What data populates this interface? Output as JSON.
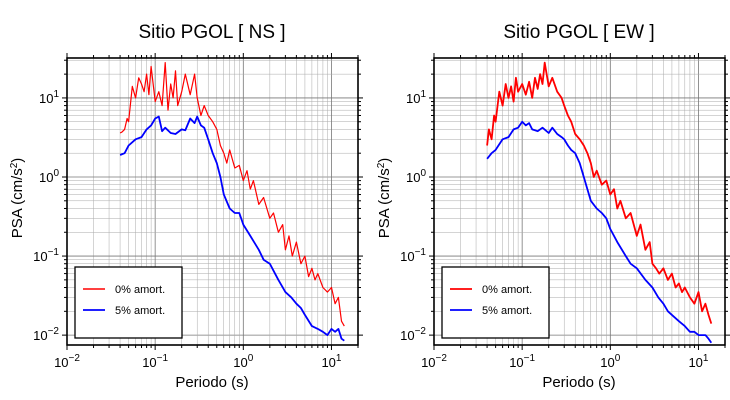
{
  "chart_data": [
    {
      "type": "line",
      "title": "Sitio PGOL [ NS ]",
      "xlabel": "Periodo (s)",
      "ylabel": "PSA (cm/s²)",
      "ylabel_main": "PSA (cm/s",
      "ylabel_sup": "2",
      "ylabel_close": ")",
      "xscale": "log",
      "yscale": "log",
      "xlim": [
        0.01,
        20
      ],
      "ylim": [
        0.0075,
        32
      ],
      "grid": true,
      "legend": "bottom-left",
      "xticks": [
        {
          "value": 0.01,
          "base": "10",
          "exp": "−2"
        },
        {
          "value": 0.1,
          "base": "10",
          "exp": "−1"
        },
        {
          "value": 1,
          "base": "10",
          "exp": "0"
        },
        {
          "value": 10,
          "base": "10",
          "exp": "1"
        }
      ],
      "yticks": [
        {
          "value": 0.01,
          "base": "10",
          "exp": "−2"
        },
        {
          "value": 0.1,
          "base": "10",
          "exp": "−1"
        },
        {
          "value": 1,
          "base": "10",
          "exp": "0"
        },
        {
          "value": 10,
          "base": "10",
          "exp": "1"
        }
      ],
      "series": [
        {
          "name": "0% amort.",
          "color": "#ff0000",
          "width": 1.2,
          "x": [
            0.04,
            0.042,
            0.045,
            0.048,
            0.05,
            0.055,
            0.06,
            0.065,
            0.07,
            0.075,
            0.08,
            0.085,
            0.09,
            0.1,
            0.11,
            0.12,
            0.13,
            0.14,
            0.15,
            0.16,
            0.17,
            0.18,
            0.2,
            0.22,
            0.25,
            0.28,
            0.3,
            0.33,
            0.36,
            0.4,
            0.45,
            0.5,
            0.55,
            0.6,
            0.65,
            0.7,
            0.8,
            0.9,
            1.0,
            1.1,
            1.2,
            1.3,
            1.5,
            1.7,
            2.0,
            2.2,
            2.5,
            2.8,
            3.0,
            3.3,
            3.6,
            4.0,
            4.5,
            5.0,
            5.5,
            6.0,
            6.5,
            7.0,
            8.0,
            9.0,
            10.0,
            11.0,
            12.0,
            13.0,
            14.0
          ],
          "y": [
            3.6,
            3.7,
            4.0,
            5.5,
            5.0,
            14.0,
            10.0,
            18.0,
            15.0,
            12.0,
            20.0,
            11.0,
            25.0,
            9.0,
            12.0,
            8.0,
            28.0,
            7.0,
            15.0,
            10.0,
            22.0,
            8.0,
            12.0,
            20.0,
            11.0,
            20.0,
            10.0,
            6.0,
            8.0,
            6.0,
            5.0,
            4.0,
            2.5,
            2.0,
            1.5,
            2.2,
            1.3,
            1.4,
            0.9,
            1.2,
            0.7,
            0.9,
            0.45,
            0.55,
            0.3,
            0.35,
            0.2,
            0.25,
            0.12,
            0.18,
            0.1,
            0.15,
            0.08,
            0.1,
            0.055,
            0.07,
            0.05,
            0.06,
            0.04,
            0.035,
            0.04,
            0.025,
            0.03,
            0.015,
            0.013
          ]
        },
        {
          "name": "5% amort.",
          "color": "#0000ff",
          "width": 1.8,
          "x": [
            0.04,
            0.045,
            0.05,
            0.06,
            0.07,
            0.08,
            0.09,
            0.1,
            0.11,
            0.12,
            0.13,
            0.15,
            0.17,
            0.2,
            0.22,
            0.25,
            0.28,
            0.3,
            0.33,
            0.36,
            0.4,
            0.45,
            0.5,
            0.55,
            0.6,
            0.7,
            0.8,
            0.9,
            1.0,
            1.2,
            1.5,
            1.7,
            2.0,
            2.5,
            3.0,
            3.5,
            4.0,
            4.5,
            5.0,
            6.0,
            7.0,
            8.0,
            9.0,
            10.0,
            11.0,
            12.0,
            13.0,
            14.0
          ],
          "y": [
            1.9,
            2.0,
            2.5,
            3.0,
            3.2,
            4.0,
            4.5,
            5.5,
            5.8,
            3.8,
            4.2,
            3.6,
            3.5,
            4.0,
            3.9,
            5.5,
            4.8,
            5.8,
            4.5,
            4.2,
            3.0,
            2.0,
            1.5,
            1.0,
            0.6,
            0.4,
            0.35,
            0.35,
            0.25,
            0.18,
            0.12,
            0.09,
            0.08,
            0.05,
            0.035,
            0.03,
            0.025,
            0.022,
            0.018,
            0.013,
            0.012,
            0.011,
            0.01,
            0.012,
            0.011,
            0.012,
            0.009,
            0.0085
          ]
        }
      ]
    },
    {
      "type": "line",
      "title": "Sitio PGOL [ EW ]",
      "xlabel": "Periodo (s)",
      "ylabel": "PSA (cm/s²)",
      "ylabel_main": "PSA (cm/s",
      "ylabel_sup": "2",
      "ylabel_close": ")",
      "xscale": "log",
      "yscale": "log",
      "xlim": [
        0.01,
        20
      ],
      "ylim": [
        0.0075,
        32
      ],
      "grid": true,
      "legend": "bottom-left",
      "xticks": [
        {
          "value": 0.01,
          "base": "10",
          "exp": "−2"
        },
        {
          "value": 0.1,
          "base": "10",
          "exp": "−1"
        },
        {
          "value": 1,
          "base": "10",
          "exp": "0"
        },
        {
          "value": 10,
          "base": "10",
          "exp": "1"
        }
      ],
      "yticks": [
        {
          "value": 0.01,
          "base": "10",
          "exp": "−2"
        },
        {
          "value": 0.1,
          "base": "10",
          "exp": "−1"
        },
        {
          "value": 1,
          "base": "10",
          "exp": "0"
        },
        {
          "value": 10,
          "base": "10",
          "exp": "1"
        }
      ],
      "series": [
        {
          "name": "0% amort.",
          "color": "#ff0000",
          "width": 1.8,
          "x": [
            0.04,
            0.042,
            0.045,
            0.048,
            0.05,
            0.055,
            0.06,
            0.065,
            0.07,
            0.075,
            0.08,
            0.085,
            0.09,
            0.1,
            0.11,
            0.12,
            0.13,
            0.14,
            0.15,
            0.16,
            0.17,
            0.18,
            0.2,
            0.22,
            0.25,
            0.28,
            0.3,
            0.33,
            0.36,
            0.4,
            0.45,
            0.5,
            0.55,
            0.6,
            0.65,
            0.7,
            0.8,
            0.9,
            1.0,
            1.1,
            1.2,
            1.3,
            1.5,
            1.7,
            2.0,
            2.2,
            2.5,
            2.8,
            3.0,
            3.3,
            3.6,
            4.0,
            4.5,
            5.0,
            5.5,
            6.0,
            6.5,
            7.0,
            8.0,
            9.0,
            10.0,
            11.0,
            12.0,
            13.0,
            14.0
          ],
          "y": [
            2.5,
            4.0,
            3.0,
            6.0,
            5.0,
            12.0,
            8.0,
            15.0,
            10.0,
            14.0,
            9.0,
            18.0,
            12.0,
            15.0,
            11.0,
            16.0,
            10.0,
            18.0,
            13.0,
            20.0,
            15.0,
            28.0,
            14.0,
            18.0,
            12.0,
            10.0,
            8.0,
            6.0,
            5.0,
            3.5,
            3.0,
            2.5,
            2.0,
            1.5,
            1.0,
            1.2,
            0.8,
            0.9,
            0.6,
            0.7,
            0.4,
            0.5,
            0.3,
            0.35,
            0.18,
            0.25,
            0.12,
            0.15,
            0.08,
            0.07,
            0.06,
            0.07,
            0.05,
            0.06,
            0.04,
            0.045,
            0.035,
            0.04,
            0.03,
            0.025,
            0.035,
            0.02,
            0.025,
            0.018,
            0.014
          ]
        },
        {
          "name": "5% amort.",
          "color": "#0000ff",
          "width": 1.8,
          "x": [
            0.04,
            0.045,
            0.05,
            0.06,
            0.07,
            0.08,
            0.09,
            0.1,
            0.11,
            0.12,
            0.13,
            0.15,
            0.17,
            0.2,
            0.22,
            0.25,
            0.28,
            0.3,
            0.33,
            0.36,
            0.4,
            0.45,
            0.5,
            0.55,
            0.6,
            0.7,
            0.8,
            0.9,
            1.0,
            1.2,
            1.5,
            1.7,
            2.0,
            2.5,
            3.0,
            3.5,
            4.0,
            4.5,
            5.0,
            6.0,
            7.0,
            8.0,
            9.0,
            10.0,
            11.0,
            12.0,
            13.0,
            14.0
          ],
          "y": [
            1.7,
            2.0,
            2.2,
            3.0,
            3.2,
            4.0,
            4.2,
            5.0,
            4.5,
            4.8,
            4.0,
            3.8,
            4.2,
            3.6,
            4.2,
            3.5,
            3.2,
            3.0,
            2.5,
            2.2,
            2.0,
            1.5,
            1.0,
            0.7,
            0.5,
            0.4,
            0.35,
            0.3,
            0.22,
            0.15,
            0.1,
            0.08,
            0.07,
            0.05,
            0.04,
            0.03,
            0.025,
            0.02,
            0.018,
            0.015,
            0.013,
            0.011,
            0.011,
            0.01,
            0.01,
            0.01,
            0.009,
            0.008
          ]
        }
      ]
    }
  ]
}
